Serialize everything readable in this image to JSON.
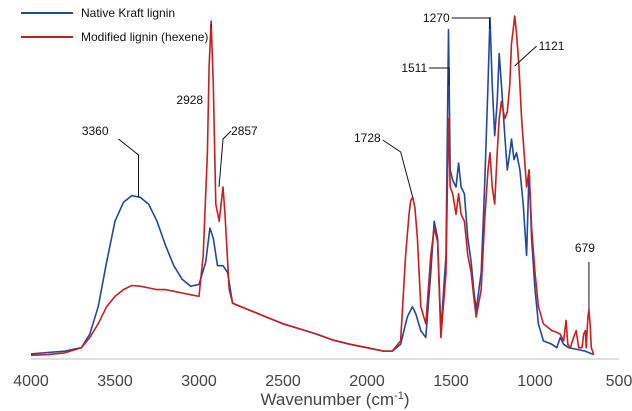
{
  "chart_data": {
    "type": "line",
    "title": "",
    "xlabel": "Wavenumber (cm",
    "xlabel_superscript": "-1",
    "xlabel_suffix": ")",
    "ylabel": "",
    "xlim": [
      4000,
      500
    ],
    "ylim": [
      0,
      1
    ],
    "x_reversed": true,
    "x_ticks": [
      "4000",
      "3500",
      "3000",
      "2500",
      "2000",
      "1500",
      "1000",
      "500"
    ],
    "legend_position": "top-left",
    "grid": false,
    "series": [
      {
        "name": "Native Kraft lignin",
        "color": "#2148a0",
        "points": [
          [
            4000,
            0.012
          ],
          [
            3900,
            0.016
          ],
          [
            3800,
            0.02
          ],
          [
            3700,
            0.03
          ],
          [
            3650,
            0.07
          ],
          [
            3600,
            0.15
          ],
          [
            3550,
            0.28
          ],
          [
            3500,
            0.4
          ],
          [
            3450,
            0.455
          ],
          [
            3400,
            0.475
          ],
          [
            3350,
            0.47
          ],
          [
            3300,
            0.45
          ],
          [
            3250,
            0.4
          ],
          [
            3200,
            0.33
          ],
          [
            3150,
            0.27
          ],
          [
            3100,
            0.23
          ],
          [
            3050,
            0.21
          ],
          [
            3000,
            0.215
          ],
          [
            2960,
            0.28
          ],
          [
            2935,
            0.38
          ],
          [
            2915,
            0.35
          ],
          [
            2890,
            0.27
          ],
          [
            2857,
            0.27
          ],
          [
            2830,
            0.25
          ],
          [
            2800,
            0.16
          ],
          [
            2750,
            0.15
          ],
          [
            2700,
            0.14
          ],
          [
            2600,
            0.12
          ],
          [
            2500,
            0.1
          ],
          [
            2400,
            0.085
          ],
          [
            2300,
            0.07
          ],
          [
            2200,
            0.052
          ],
          [
            2100,
            0.04
          ],
          [
            2000,
            0.03
          ],
          [
            1900,
            0.02
          ],
          [
            1850,
            0.02
          ],
          [
            1800,
            0.04
          ],
          [
            1760,
            0.12
          ],
          [
            1730,
            0.15
          ],
          [
            1710,
            0.13
          ],
          [
            1680,
            0.08
          ],
          [
            1650,
            0.06
          ],
          [
            1620,
            0.25
          ],
          [
            1600,
            0.4
          ],
          [
            1580,
            0.35
          ],
          [
            1560,
            0.08
          ],
          [
            1530,
            0.3
          ],
          [
            1515,
            0.96
          ],
          [
            1505,
            0.55
          ],
          [
            1490,
            0.52
          ],
          [
            1470,
            0.5
          ],
          [
            1455,
            0.57
          ],
          [
            1440,
            0.5
          ],
          [
            1420,
            0.48
          ],
          [
            1400,
            0.35
          ],
          [
            1380,
            0.28
          ],
          [
            1365,
            0.2
          ],
          [
            1350,
            0.14
          ],
          [
            1320,
            0.25
          ],
          [
            1300,
            0.5
          ],
          [
            1280,
            0.8
          ],
          [
            1268,
            0.995
          ],
          [
            1255,
            0.8
          ],
          [
            1240,
            0.65
          ],
          [
            1225,
            0.75
          ],
          [
            1213,
            0.89
          ],
          [
            1200,
            0.8
          ],
          [
            1180,
            0.65
          ],
          [
            1165,
            0.55
          ],
          [
            1150,
            0.6
          ],
          [
            1140,
            0.64
          ],
          [
            1125,
            0.58
          ],
          [
            1110,
            0.6
          ],
          [
            1090,
            0.55
          ],
          [
            1070,
            0.45
          ],
          [
            1050,
            0.3
          ],
          [
            1035,
            0.55
          ],
          [
            1020,
            0.35
          ],
          [
            1000,
            0.2
          ],
          [
            980,
            0.1
          ],
          [
            950,
            0.05
          ],
          [
            900,
            0.04
          ],
          [
            870,
            0.03
          ],
          [
            850,
            0.06
          ],
          [
            830,
            0.04
          ],
          [
            800,
            0.03
          ],
          [
            750,
            0.025
          ],
          [
            700,
            0.02
          ],
          [
            650,
            0.01
          ]
        ]
      },
      {
        "name": "Modified lignin (hexene)",
        "color": "#c81e1e",
        "points": [
          [
            4000,
            0.008
          ],
          [
            3900,
            0.01
          ],
          [
            3800,
            0.015
          ],
          [
            3700,
            0.03
          ],
          [
            3650,
            0.06
          ],
          [
            3600,
            0.1
          ],
          [
            3550,
            0.15
          ],
          [
            3500,
            0.18
          ],
          [
            3450,
            0.2
          ],
          [
            3400,
            0.212
          ],
          [
            3350,
            0.21
          ],
          [
            3300,
            0.205
          ],
          [
            3250,
            0.2
          ],
          [
            3200,
            0.2
          ],
          [
            3150,
            0.195
          ],
          [
            3100,
            0.19
          ],
          [
            3050,
            0.185
          ],
          [
            3000,
            0.18
          ],
          [
            2975,
            0.3
          ],
          [
            2950,
            0.6
          ],
          [
            2940,
            0.85
          ],
          [
            2928,
            0.985
          ],
          [
            2915,
            0.8
          ],
          [
            2900,
            0.45
          ],
          [
            2880,
            0.4
          ],
          [
            2857,
            0.5
          ],
          [
            2845,
            0.42
          ],
          [
            2820,
            0.2
          ],
          [
            2800,
            0.16
          ],
          [
            2750,
            0.15
          ],
          [
            2700,
            0.14
          ],
          [
            2600,
            0.12
          ],
          [
            2500,
            0.1
          ],
          [
            2400,
            0.085
          ],
          [
            2300,
            0.07
          ],
          [
            2200,
            0.052
          ],
          [
            2100,
            0.04
          ],
          [
            2000,
            0.03
          ],
          [
            1900,
            0.02
          ],
          [
            1850,
            0.02
          ],
          [
            1800,
            0.05
          ],
          [
            1770,
            0.3
          ],
          [
            1750,
            0.42
          ],
          [
            1740,
            0.46
          ],
          [
            1728,
            0.47
          ],
          [
            1715,
            0.44
          ],
          [
            1700,
            0.35
          ],
          [
            1680,
            0.15
          ],
          [
            1650,
            0.1
          ],
          [
            1620,
            0.3
          ],
          [
            1600,
            0.38
          ],
          [
            1580,
            0.34
          ],
          [
            1560,
            0.06
          ],
          [
            1530,
            0.25
          ],
          [
            1515,
            0.7
          ],
          [
            1505,
            0.5
          ],
          [
            1490,
            0.48
          ],
          [
            1470,
            0.42
          ],
          [
            1455,
            0.48
          ],
          [
            1440,
            0.42
          ],
          [
            1420,
            0.4
          ],
          [
            1400,
            0.3
          ],
          [
            1380,
            0.25
          ],
          [
            1365,
            0.18
          ],
          [
            1350,
            0.12
          ],
          [
            1320,
            0.2
          ],
          [
            1300,
            0.4
          ],
          [
            1280,
            0.55
          ],
          [
            1268,
            0.6
          ],
          [
            1255,
            0.5
          ],
          [
            1240,
            0.45
          ],
          [
            1225,
            0.6
          ],
          [
            1213,
            0.7
          ],
          [
            1200,
            0.75
          ],
          [
            1180,
            0.7
          ],
          [
            1165,
            0.72
          ],
          [
            1150,
            0.8
          ],
          [
            1140,
            0.92
          ],
          [
            1130,
            0.96
          ],
          [
            1121,
            1.0
          ],
          [
            1110,
            0.95
          ],
          [
            1095,
            0.85
          ],
          [
            1080,
            0.7
          ],
          [
            1065,
            0.6
          ],
          [
            1050,
            0.5
          ],
          [
            1035,
            0.55
          ],
          [
            1020,
            0.38
          ],
          [
            1000,
            0.25
          ],
          [
            980,
            0.15
          ],
          [
            950,
            0.1
          ],
          [
            900,
            0.08
          ],
          [
            870,
            0.075
          ],
          [
            850,
            0.07
          ],
          [
            830,
            0.05
          ],
          [
            815,
            0.11
          ],
          [
            805,
            0.04
          ],
          [
            790,
            0.03
          ],
          [
            770,
            0.06
          ],
          [
            755,
            0.08
          ],
          [
            740,
            0.03
          ],
          [
            720,
            0.03
          ],
          [
            710,
            0.07
          ],
          [
            700,
            0.08
          ],
          [
            695,
            0.03
          ],
          [
            685,
            0.12
          ],
          [
            679,
            0.14
          ],
          [
            672,
            0.1
          ],
          [
            665,
            0.03
          ],
          [
            650,
            0.01
          ]
        ]
      }
    ],
    "annotations": [
      {
        "label": "3360",
        "x": 3360,
        "series": 0
      },
      {
        "label": "2928",
        "x": 2928,
        "series": 1
      },
      {
        "label": "2857",
        "x": 2857,
        "series": 1
      },
      {
        "label": "1728",
        "x": 1728,
        "series": 1
      },
      {
        "label": "1511",
        "x": 1511,
        "series": 0
      },
      {
        "label": "1270",
        "x": 1270,
        "series": 0
      },
      {
        "label": "1121",
        "x": 1121,
        "series": 1
      },
      {
        "label": "679",
        "x": 679,
        "series": 1
      }
    ]
  }
}
